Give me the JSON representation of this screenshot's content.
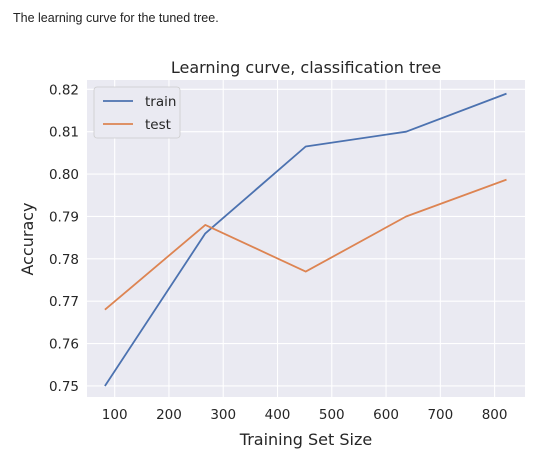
{
  "caption": "The learning curve for the tuned tree.",
  "chart_data": {
    "type": "line",
    "title": "Learning curve, classification tree",
    "xlabel": "Training Set Size",
    "ylabel": "Accuracy",
    "x": [
      82,
      267,
      452,
      637,
      822
    ],
    "series": [
      {
        "name": "train",
        "color": "#4c72b0",
        "values": [
          0.75,
          0.786,
          0.8065,
          0.81,
          0.819
        ]
      },
      {
        "name": "test",
        "color": "#dd8452",
        "values": [
          0.768,
          0.788,
          0.777,
          0.79,
          0.7987
        ]
      }
    ],
    "xlim": [
      49,
      856
    ],
    "ylim": [
      0.7474,
      0.8222
    ],
    "xticks": [
      100,
      200,
      300,
      400,
      500,
      600,
      700,
      800
    ],
    "yticks": [
      0.75,
      0.76,
      0.77,
      0.78,
      0.79,
      0.8,
      0.81,
      0.82
    ],
    "ytick_labels": [
      "0.75",
      "0.76",
      "0.77",
      "0.78",
      "0.79",
      "0.80",
      "0.81",
      "0.82"
    ],
    "grid": true,
    "legend_position": "upper left",
    "background": "#eaeaf2"
  }
}
